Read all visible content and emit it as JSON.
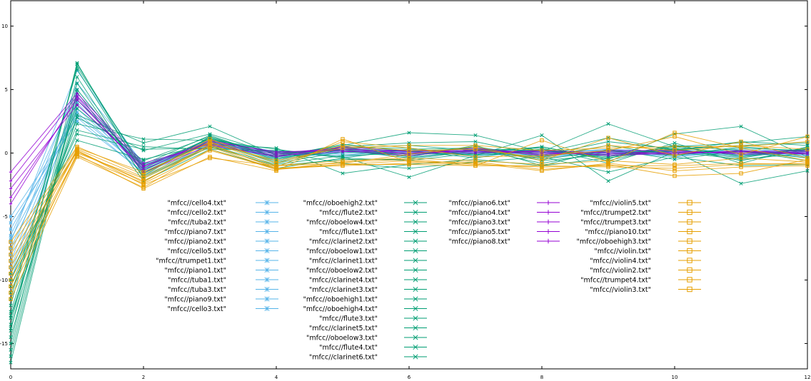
{
  "chart_data": {
    "type": "line",
    "title": "",
    "xlabel": "",
    "ylabel": "",
    "xlim": [
      0,
      12
    ],
    "ylim": [
      -17,
      12
    ],
    "xticks": [
      0,
      2,
      4,
      6,
      8,
      10,
      12
    ],
    "yticks": [
      -15,
      -10,
      -5,
      0,
      5,
      10
    ],
    "grid": false,
    "legend_placement": "bottom-center, five columns",
    "colors": {
      "blue": "#56b4e9",
      "green": "#009e73",
      "purple": "#9400d3",
      "orange": "#e69f00"
    },
    "x": [
      0,
      1,
      2,
      3,
      4,
      5,
      6,
      7,
      8,
      9,
      10,
      11,
      12
    ],
    "series": [
      {
        "name": "\"mfcc//cello4.txt\"",
        "color": "#56b4e9",
        "marker": "asterisk",
        "values": [
          -6.0,
          3.2,
          -1.3,
          0.8,
          -0.2,
          0.3,
          -0.1,
          0.2,
          -0.4,
          0.1,
          -0.3,
          0.2,
          0.0
        ]
      },
      {
        "name": "\"mfcc//cello2.txt\"",
        "color": "#56b4e9",
        "marker": "asterisk",
        "values": [
          -7.5,
          3.8,
          -1.1,
          0.7,
          -0.4,
          0.2,
          0.1,
          -0.2,
          0.3,
          -0.2,
          0.2,
          -0.1,
          0.1
        ]
      },
      {
        "name": "\"mfcc//tuba2.txt\"",
        "color": "#56b4e9",
        "marker": "asterisk",
        "values": [
          -5.0,
          2.8,
          -1.6,
          0.9,
          -0.1,
          0.4,
          -0.3,
          0.1,
          -0.1,
          0.3,
          0.0,
          0.2,
          -0.2
        ]
      },
      {
        "name": "\"mfcc//piano7.txt\"",
        "color": "#56b4e9",
        "marker": "asterisk",
        "values": [
          -8.5,
          4.2,
          -0.9,
          0.6,
          0.1,
          -0.2,
          0.3,
          0.0,
          -0.3,
          0.2,
          0.1,
          -0.3,
          0.2
        ]
      },
      {
        "name": "\"mfcc//piano2.txt\"",
        "color": "#56b4e9",
        "marker": "asterisk",
        "values": [
          -6.5,
          5.0,
          -1.4,
          1.0,
          -0.3,
          0.1,
          -0.2,
          0.3,
          0.1,
          -0.1,
          0.2,
          0.0,
          -0.1
        ]
      },
      {
        "name": "\"mfcc//cello5.txt\"",
        "color": "#56b4e9",
        "marker": "asterisk",
        "values": [
          -9.0,
          3.5,
          -1.2,
          0.5,
          0.0,
          0.3,
          0.2,
          -0.1,
          -0.2,
          0.1,
          -0.2,
          0.1,
          0.3
        ]
      },
      {
        "name": "\"mfcc//trumpet1.txt\"",
        "color": "#56b4e9",
        "marker": "asterisk",
        "values": [
          -7.0,
          6.5,
          -1.0,
          0.9,
          -0.5,
          0.2,
          -0.4,
          0.2,
          0.0,
          0.3,
          0.1,
          -0.2,
          0.0
        ]
      },
      {
        "name": "\"mfcc//piano1.txt\"",
        "color": "#56b4e9",
        "marker": "asterisk",
        "values": [
          -5.5,
          2.5,
          -1.5,
          0.4,
          0.2,
          -0.1,
          0.1,
          0.4,
          -0.1,
          0.0,
          0.3,
          0.1,
          -0.3
        ]
      },
      {
        "name": "\"mfcc//tuba1.txt\"",
        "color": "#56b4e9",
        "marker": "asterisk",
        "values": [
          -10.0,
          4.0,
          -1.8,
          0.7,
          -0.2,
          0.0,
          0.3,
          -0.3,
          0.2,
          -0.2,
          0.0,
          0.3,
          0.1
        ]
      },
      {
        "name": "\"mfcc//tuba3.txt\"",
        "color": "#56b4e9",
        "marker": "asterisk",
        "values": [
          -6.8,
          3.0,
          -1.3,
          1.1,
          0.1,
          0.2,
          -0.1,
          0.0,
          0.1,
          0.2,
          -0.1,
          0.0,
          0.2
        ]
      },
      {
        "name": "\"mfcc//piano9.txt\"",
        "color": "#56b4e9",
        "marker": "asterisk",
        "values": [
          -8.0,
          5.5,
          -0.8,
          0.6,
          -0.3,
          0.4,
          0.0,
          0.1,
          -0.2,
          -0.1,
          0.2,
          -0.1,
          -0.2
        ]
      },
      {
        "name": "\"mfcc//cello3.txt\"",
        "color": "#56b4e9",
        "marker": "asterisk",
        "values": [
          -9.5,
          4.5,
          -1.1,
          0.8,
          0.0,
          -0.3,
          0.2,
          0.2,
          0.0,
          0.1,
          -0.3,
          0.2,
          0.0
        ]
      },
      {
        "name": "\"mfcc//oboehigh2.txt\"",
        "color": "#009e73",
        "marker": "cross",
        "values": [
          -14.0,
          7.1,
          -1.8,
          1.3,
          -0.5,
          0.5,
          -0.3,
          0.6,
          -1.0,
          -0.4,
          0.4,
          -0.6,
          0.3
        ]
      },
      {
        "name": "\"mfcc//flute2.txt\"",
        "color": "#009e73",
        "marker": "cross",
        "values": [
          -12.0,
          6.8,
          -1.2,
          1.2,
          -0.6,
          0.4,
          0.4,
          -0.2,
          0.2,
          -0.3,
          0.6,
          0.2,
          -0.4
        ]
      },
      {
        "name": "\"mfcc//oboelow4.txt\"",
        "color": "#009e73",
        "marker": "cross",
        "values": [
          -11.0,
          2.3,
          1.1,
          1.0,
          0.3,
          -0.4,
          0.3,
          0.4,
          -0.5,
          0.2,
          -0.2,
          0.5,
          0.1
        ]
      },
      {
        "name": "\"mfcc//flute1.txt\"",
        "color": "#009e73",
        "marker": "cross",
        "values": [
          -15.0,
          6.0,
          -2.0,
          0.5,
          -1.0,
          -0.5,
          -0.5,
          0.2,
          0.4,
          -0.8,
          0.8,
          -0.8,
          0.5
        ]
      },
      {
        "name": "\"mfcc//clarinet2.txt\"",
        "color": "#009e73",
        "marker": "cross",
        "values": [
          -13.0,
          3.0,
          0.8,
          2.1,
          -0.2,
          0.6,
          1.6,
          1.4,
          0.1,
          2.3,
          0.5,
          0.8,
          1.3
        ]
      },
      {
        "name": "\"mfcc//oboelow1.txt\"",
        "color": "#009e73",
        "marker": "cross",
        "values": [
          -9.5,
          1.0,
          -0.5,
          0.7,
          0.4,
          -1.6,
          -0.9,
          -0.5,
          -1.0,
          0.3,
          -0.5,
          0.2,
          -0.6
        ]
      },
      {
        "name": "\"mfcc//clarinet1.txt\"",
        "color": "#009e73",
        "marker": "cross",
        "values": [
          -16.0,
          5.0,
          -1.5,
          0.9,
          -0.8,
          0.1,
          -0.2,
          0.3,
          0.2,
          -0.2,
          0.2,
          0.0,
          0.0
        ]
      },
      {
        "name": "\"mfcc//oboelow2.txt\"",
        "color": "#009e73",
        "marker": "cross",
        "values": [
          -10.5,
          1.8,
          0.5,
          0.3,
          0.2,
          -0.3,
          -1.9,
          -0.2,
          1.4,
          -2.2,
          0.1,
          -2.4,
          -1.4
        ]
      },
      {
        "name": "\"mfcc//clarinet4.txt\"",
        "color": "#009e73",
        "marker": "cross",
        "values": [
          -14.5,
          4.2,
          -0.9,
          1.4,
          -0.4,
          0.3,
          0.2,
          -0.4,
          0.5,
          -0.5,
          1.5,
          2.1,
          -0.3
        ]
      },
      {
        "name": "\"mfcc//clarinet3.txt\"",
        "color": "#009e73",
        "marker": "cross",
        "values": [
          -12.5,
          3.8,
          -1.0,
          1.1,
          0.0,
          0.2,
          -0.1,
          0.5,
          -0.3,
          0.6,
          -0.2,
          0.4,
          0.2
        ]
      },
      {
        "name": "\"mfcc//oboehigh1.txt\"",
        "color": "#009e73",
        "marker": "cross",
        "values": [
          -13.5,
          7.0,
          -1.4,
          1.2,
          -0.3,
          0.7,
          0.1,
          0.4,
          -0.6,
          -0.1,
          0.3,
          -0.4,
          0.4
        ]
      },
      {
        "name": "\"mfcc//oboehigh4.txt\"",
        "color": "#009e73",
        "marker": "cross",
        "values": [
          -11.5,
          6.6,
          -1.6,
          1.0,
          -0.7,
          0.3,
          -0.4,
          0.3,
          -0.8,
          0.1,
          0.1,
          -0.5,
          0.0
        ]
      },
      {
        "name": "\"mfcc//flute3.txt\"",
        "color": "#009e73",
        "marker": "cross",
        "values": [
          -15.5,
          5.5,
          -1.9,
          0.6,
          -0.9,
          -0.2,
          0.0,
          -0.1,
          0.3,
          -0.4,
          0.5,
          -0.2,
          0.3
        ]
      },
      {
        "name": "\"mfcc//clarinet5.txt\"",
        "color": "#009e73",
        "marker": "cross",
        "values": [
          -12.8,
          2.8,
          0.2,
          1.5,
          -0.1,
          0.5,
          0.8,
          0.9,
          -0.2,
          0.9,
          0.3,
          0.6,
          0.8
        ]
      },
      {
        "name": "\"mfcc//oboelow3.txt\"",
        "color": "#009e73",
        "marker": "cross",
        "values": [
          -10.0,
          1.5,
          0.3,
          0.4,
          0.1,
          -0.8,
          -1.2,
          -0.7,
          -0.3,
          -1.5,
          -0.3,
          -1.0,
          -0.9
        ]
      },
      {
        "name": "\"mfcc//flute4.txt\"",
        "color": "#009e73",
        "marker": "cross",
        "values": [
          -16.5,
          4.8,
          -2.2,
          0.3,
          -1.2,
          -0.4,
          -0.6,
          0.0,
          0.5,
          -0.6,
          0.6,
          -0.3,
          0.4
        ]
      },
      {
        "name": "\"mfcc//clarinet6.txt\"",
        "color": "#009e73",
        "marker": "cross",
        "values": [
          -13.8,
          3.5,
          -0.6,
          1.3,
          -0.3,
          0.4,
          0.6,
          0.2,
          0.0,
          1.2,
          0.2,
          0.9,
          0.6
        ]
      },
      {
        "name": "\"mfcc//piano6.txt\"",
        "color": "#9400d3",
        "marker": "plus",
        "values": [
          -2.2,
          4.5,
          -1.0,
          0.8,
          -0.1,
          0.3,
          0.0,
          0.2,
          -0.1,
          0.1,
          0.0,
          0.1,
          0.0
        ]
      },
      {
        "name": "\"mfcc//piano4.txt\"",
        "color": "#9400d3",
        "marker": "plus",
        "values": [
          -3.5,
          4.2,
          -1.3,
          0.9,
          0.1,
          0.2,
          -0.2,
          0.3,
          0.0,
          -0.1,
          0.1,
          0.0,
          0.1
        ]
      },
      {
        "name": "\"mfcc//piano3.txt\"",
        "color": "#9400d3",
        "marker": "plus",
        "values": [
          -1.5,
          4.7,
          -0.8,
          0.7,
          -0.3,
          0.5,
          0.1,
          0.0,
          0.2,
          0.0,
          -0.1,
          0.2,
          -0.1
        ]
      },
      {
        "name": "\"mfcc//piano5.txt\"",
        "color": "#9400d3",
        "marker": "plus",
        "values": [
          -2.8,
          3.8,
          -1.1,
          1.0,
          0.0,
          0.4,
          -0.1,
          0.4,
          -0.2,
          0.2,
          0.2,
          -0.1,
          0.0
        ]
      },
      {
        "name": "\"mfcc//piano8.txt\"",
        "color": "#9400d3",
        "marker": "plus",
        "values": [
          -4.0,
          4.4,
          -1.5,
          0.6,
          -0.2,
          0.1,
          0.2,
          0.1,
          0.1,
          -0.2,
          0.0,
          0.1,
          0.2
        ]
      },
      {
        "name": "\"mfcc//violin5.txt\"",
        "color": "#e69f00",
        "marker": "square",
        "values": [
          -8.0,
          0.2,
          -2.3,
          0.7,
          -1.2,
          -0.9,
          -0.6,
          -1.0,
          1.0,
          -0.7,
          1.6,
          0.4,
          -0.6
        ]
      },
      {
        "name": "\"mfcc//trumpet2.txt\"",
        "color": "#e69f00",
        "marker": "square",
        "values": [
          -9.0,
          0.3,
          -1.9,
          0.9,
          -1.0,
          -0.8,
          -0.1,
          0.5,
          -0.6,
          1.2,
          -0.2,
          0.9,
          -0.4
        ]
      },
      {
        "name": "\"mfcc//trumpet3.txt\"",
        "color": "#e69f00",
        "marker": "square",
        "values": [
          -10.0,
          -0.1,
          -2.8,
          -0.3,
          -1.4,
          1.1,
          -0.7,
          -0.7,
          -1.3,
          -0.9,
          -1.8,
          -1.6,
          -0.5
        ]
      },
      {
        "name": "\"mfcc//piano10.txt\"",
        "color": "#e69f00",
        "marker": "square",
        "values": [
          -7.5,
          0.4,
          -1.5,
          0.8,
          -0.6,
          0.4,
          0.6,
          0.6,
          0.2,
          0.4,
          0.5,
          0.5,
          0.9
        ]
      },
      {
        "name": "\"mfcc//oboehigh3.txt\"",
        "color": "#e69f00",
        "marker": "square",
        "values": [
          -11.0,
          0.0,
          -2.0,
          0.6,
          -1.1,
          0.9,
          0.4,
          -0.3,
          -0.2,
          0.2,
          1.3,
          -0.1,
          1.3
        ]
      },
      {
        "name": "\"mfcc//violin.txt\"",
        "color": "#e69f00",
        "marker": "square",
        "values": [
          -8.5,
          0.1,
          -2.2,
          0.5,
          -1.3,
          -0.9,
          -0.9,
          -1.0,
          -1.0,
          -1.1,
          -1.2,
          -0.9,
          -0.8
        ]
      },
      {
        "name": "\"mfcc//violin4.txt\"",
        "color": "#e69f00",
        "marker": "square",
        "values": [
          -9.5,
          0.2,
          -2.5,
          -0.4,
          -1.0,
          -0.6,
          -0.4,
          -0.6,
          -0.9,
          -0.6,
          -0.9,
          -0.4,
          -0.7
        ]
      },
      {
        "name": "\"mfcc//violin2.txt\"",
        "color": "#e69f00",
        "marker": "square",
        "values": [
          -10.5,
          -0.2,
          -2.4,
          0.2,
          -1.2,
          -1.0,
          -0.8,
          -0.8,
          -1.4,
          -0.8,
          -1.4,
          -1.1,
          -1.0
        ]
      },
      {
        "name": "\"mfcc//trumpet4.txt\"",
        "color": "#e69f00",
        "marker": "square",
        "values": [
          -7.0,
          0.5,
          -1.7,
          1.1,
          -0.8,
          0.6,
          0.2,
          0.3,
          -0.4,
          0.6,
          0.2,
          0.6,
          0.3
        ]
      },
      {
        "name": "\"mfcc//violin3.txt\"",
        "color": "#e69f00",
        "marker": "square",
        "values": [
          -11.5,
          -0.3,
          -2.7,
          0.3,
          -1.3,
          -0.7,
          -0.5,
          -0.9,
          -1.1,
          -1.0,
          -1.0,
          -0.8,
          -0.9
        ]
      }
    ]
  }
}
